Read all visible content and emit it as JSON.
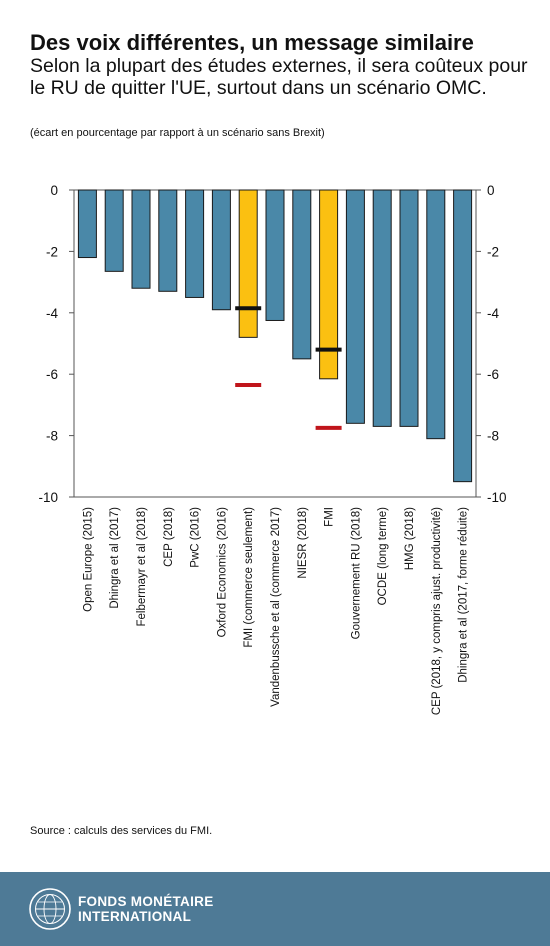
{
  "header": {
    "title": "Des voix différentes, un message similaire",
    "subtitle": "Selon la plupart des études externes, il sera coûteux pour le RU de quitter l'UE, surtout dans un scénario OMC.",
    "note": "(écart en pourcentage par rapport à un scénario sans Brexit)"
  },
  "chart_data": {
    "type": "bar",
    "categories": [
      "Open Europe (2015)",
      "Dhingra et al (2017)",
      "Felbermayr et al (2018)",
      "CEP (2018)",
      "PwC (2016)",
      "Oxford Economics (2016)",
      "FMI (commerce seulement)",
      "Vandenbussche et al (commerce 2017)",
      "NIESR (2018)",
      "FMI",
      "Gouvernement RU (2018)",
      "OCDE (long terme)",
      "HMG (2018)",
      "CEP (2018, y compris ajust. productivité)",
      "Dhingra et al (2017, forme réduite)"
    ],
    "values": [
      -2.2,
      -2.65,
      -3.2,
      -3.3,
      -3.5,
      -3.9,
      -4.8,
      -4.25,
      -5.5,
      -6.15,
      -7.6,
      -7.7,
      -7.7,
      -8.1,
      -9.5
    ],
    "highlight_indices": [
      6,
      9
    ],
    "markers": [
      {
        "category_index": 6,
        "value": -3.85,
        "color": "#111111"
      },
      {
        "category_index": 6,
        "value": -6.35,
        "color": "#c0151b"
      },
      {
        "category_index": 9,
        "value": -5.2,
        "color": "#111111"
      },
      {
        "category_index": 9,
        "value": -7.75,
        "color": "#c0151b"
      }
    ],
    "ylim": [
      -10,
      0
    ],
    "yticks": [
      0,
      -2,
      -4,
      -6,
      -8,
      -10
    ],
    "ytick_labels": [
      "0",
      "-2",
      "-4",
      "-6",
      "-8",
      "-10"
    ],
    "colors": {
      "bar": "#4a88a8",
      "highlight": "#fbc011",
      "outline": "#1a1a1a"
    },
    "grid": false
  },
  "footer": {
    "source": "Source : calculs des services du FMI.",
    "org_line1": "FONDS MONÉTAIRE",
    "org_line2": "INTERNATIONAL",
    "logo_icon": "imf-seal-icon"
  }
}
